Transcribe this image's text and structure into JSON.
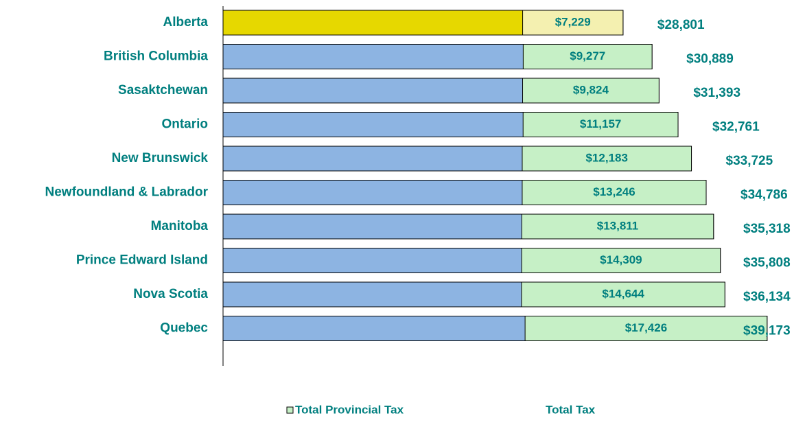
{
  "chart_data": {
    "type": "bar",
    "categories": [
      "Alberta",
      "British Columbia",
      "Sasaktchewan",
      "Ontario",
      "New Brunswick",
      "Newfoundland  & Labrador",
      "Manitoba",
      "Prince Edward  Island",
      "Nova Scotia",
      "Quebec"
    ],
    "series": [
      {
        "name": "Total Provincial Tax",
        "color": "#c6f0c6",
        "colors": [
          "#f4f0b0",
          "#c6f0c6",
          "#c6f0c6",
          "#c6f0c6",
          "#c6f0c6",
          "#c6f0c6",
          "#c6f0c6",
          "#c6f0c6",
          "#c6f0c6",
          "#c6f0c6"
        ],
        "values": [
          7229,
          9277,
          9824,
          11157,
          12183,
          13246,
          13811,
          14309,
          14644,
          17426
        ],
        "value_labels": [
          "$7,229",
          "$9,277",
          "$9,824",
          "$11,157",
          "$12,183",
          "$13,246",
          "$13,811",
          "$14,309",
          "$14,644",
          "$17,426"
        ]
      },
      {
        "name": "Total Tax",
        "color": "#8db4e2",
        "colors": [
          "#e6d800",
          "#8db4e2",
          "#8db4e2",
          "#8db4e2",
          "#8db4e2",
          "#8db4e2",
          "#8db4e2",
          "#8db4e2",
          "#8db4e2",
          "#8db4e2"
        ],
        "values": [
          28801,
          30889,
          31393,
          32761,
          33725,
          34786,
          35318,
          35808,
          36134,
          39173
        ],
        "value_labels": [
          "$28,801",
          "$30,889",
          "$31,393",
          "$32,761",
          "$33,725",
          "$34,786",
          "$35,318",
          "$35,808",
          "$36,134",
          "$39,173"
        ]
      }
    ],
    "xlim": [
      0,
      42000
    ]
  }
}
